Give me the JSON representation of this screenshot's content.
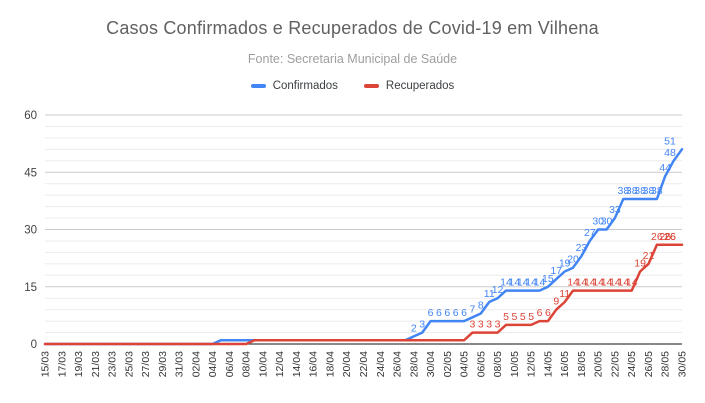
{
  "header": {
    "title": "Casos Confirmados e Recuperados de Covid-19 em Vilhena",
    "subtitle": "Fonte: Secretaria Municipal de Saúde"
  },
  "chart_data": {
    "type": "line",
    "title": "Casos Confirmados e Recuperados de Covid-19 em Vilhena",
    "subtitle": "Fonte: Secretaria Municipal de Saúde",
    "legend_position": "top",
    "grid": "on",
    "ylim": [
      0,
      60
    ],
    "y_ticks": [
      0,
      15,
      30,
      45,
      60
    ],
    "y_minor_step": 3,
    "x_tick_every": 2,
    "colors": {
      "major_grid": "#cccccc",
      "minor_grid": "#ebebeb",
      "axis_line": "#424242",
      "tick_text": "#333333"
    },
    "x": [
      "15/03",
      "16/03",
      "17/03",
      "18/03",
      "19/03",
      "20/03",
      "21/03",
      "22/03",
      "23/03",
      "24/03",
      "25/03",
      "26/03",
      "27/03",
      "28/03",
      "29/03",
      "30/03",
      "31/03",
      "01/04",
      "02/04",
      "03/04",
      "04/04",
      "05/04",
      "06/04",
      "07/04",
      "08/04",
      "09/04",
      "10/04",
      "11/04",
      "12/04",
      "13/04",
      "14/04",
      "15/04",
      "16/04",
      "17/04",
      "18/04",
      "19/04",
      "20/04",
      "21/04",
      "22/04",
      "23/04",
      "24/04",
      "25/04",
      "26/04",
      "27/04",
      "28/04",
      "29/04",
      "30/04",
      "01/05",
      "02/05",
      "03/05",
      "04/05",
      "05/05",
      "06/05",
      "07/05",
      "08/05",
      "09/05",
      "10/05",
      "11/05",
      "12/05",
      "13/05",
      "14/05",
      "15/05",
      "16/05",
      "17/05",
      "18/05",
      "19/05",
      "20/05",
      "21/05",
      "22/05",
      "23/05",
      "24/05",
      "25/05",
      "26/05",
      "27/05",
      "28/05",
      "29/05",
      "30/05"
    ],
    "series": [
      {
        "name": "Confirmados",
        "color": "#4285f4",
        "values": [
          0,
          0,
          0,
          0,
          0,
          0,
          0,
          0,
          0,
          0,
          0,
          0,
          0,
          0,
          0,
          0,
          0,
          0,
          0,
          0,
          0,
          1,
          1,
          1,
          1,
          1,
          1,
          1,
          1,
          1,
          1,
          1,
          1,
          1,
          1,
          1,
          1,
          1,
          1,
          1,
          1,
          1,
          1,
          1,
          2,
          3,
          6,
          6,
          6,
          6,
          6,
          7,
          8,
          11,
          12,
          14,
          14,
          14,
          14,
          14,
          15,
          17,
          19,
          20,
          23,
          27,
          30,
          30,
          33,
          38,
          38,
          38,
          38,
          38,
          44,
          48,
          51
        ]
      },
      {
        "name": "Recuperados",
        "color": "#db4437",
        "values": [
          0,
          0,
          0,
          0,
          0,
          0,
          0,
          0,
          0,
          0,
          0,
          0,
          0,
          0,
          0,
          0,
          0,
          0,
          0,
          0,
          0,
          0,
          0,
          0,
          0,
          1,
          1,
          1,
          1,
          1,
          1,
          1,
          1,
          1,
          1,
          1,
          1,
          1,
          1,
          1,
          1,
          1,
          1,
          1,
          1,
          1,
          1,
          1,
          1,
          1,
          1,
          3,
          3,
          3,
          3,
          5,
          5,
          5,
          5,
          6,
          6,
          9,
          11,
          14,
          14,
          14,
          14,
          14,
          14,
          14,
          14,
          19,
          21,
          26,
          26,
          26,
          26
        ]
      }
    ],
    "label_min_value": 2
  }
}
